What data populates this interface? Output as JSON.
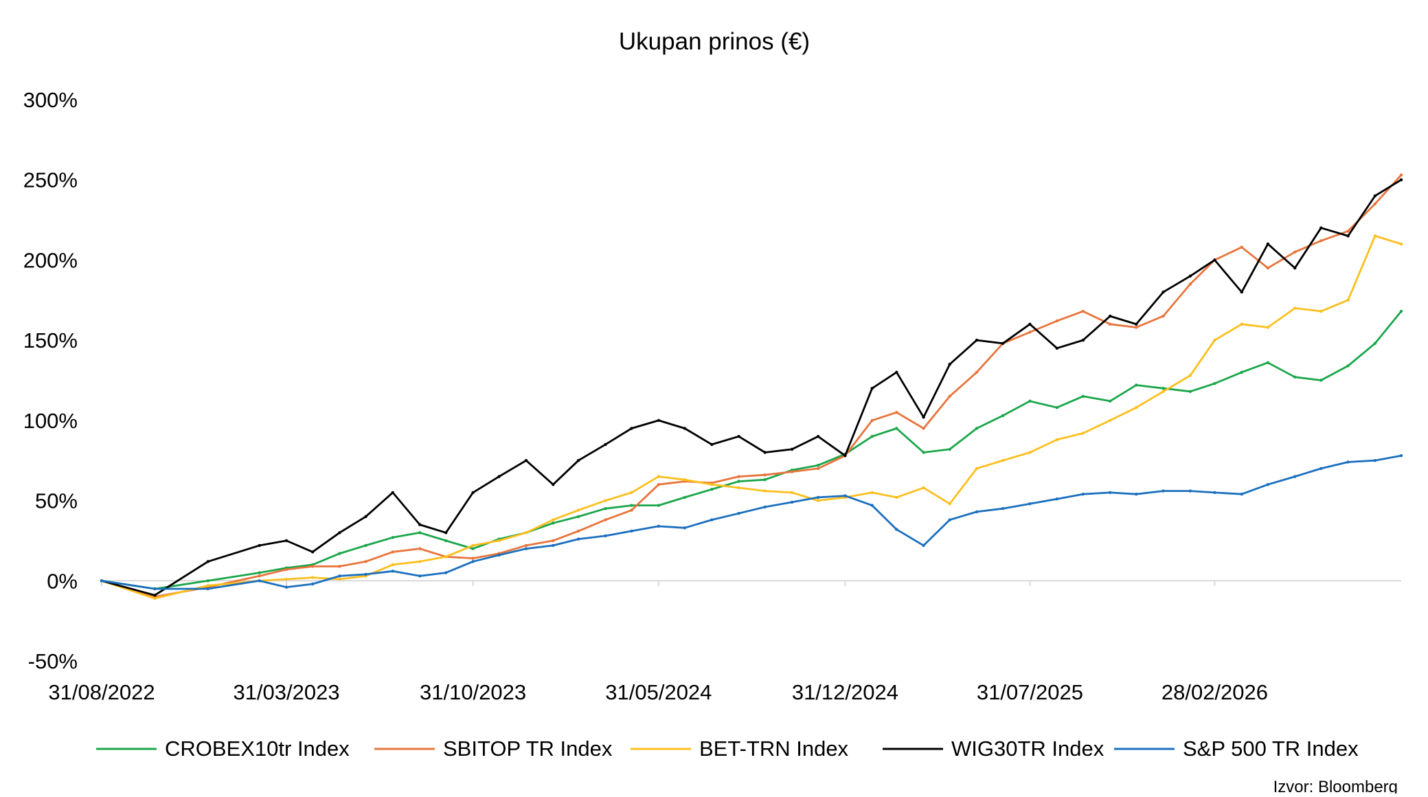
{
  "chart_data": {
    "type": "line",
    "title": "Ukupan prinos (€)",
    "xlabel": "",
    "ylabel": "",
    "x_tick_labels": [
      "31/08/2022",
      "31/03/2023",
      "31/10/2023",
      "31/05/2024",
      "31/12/2024",
      "31/07/2025",
      "28/02/2026"
    ],
    "y_tick_labels": [
      "300%",
      "250%",
      "200%",
      "150%",
      "100%",
      "50%",
      "0%",
      "-50%"
    ],
    "y_ticks": [
      300,
      250,
      200,
      150,
      100,
      50,
      0,
      -50
    ],
    "ylim": [
      -50,
      300
    ],
    "x_start": "31/08/2022",
    "x_end": "30/09/2026",
    "legend_position": "bottom",
    "grid": false,
    "source": "Izvor: Bloomberg",
    "x": [
      "31/08/2022",
      "31/10/2022",
      "31/12/2022",
      "28/02/2023",
      "31/03/2023",
      "30/04/2023",
      "31/05/2023",
      "30/06/2023",
      "31/07/2023",
      "31/08/2023",
      "30/09/2023",
      "31/10/2023",
      "30/11/2023",
      "31/12/2023",
      "31/01/2024",
      "29/02/2024",
      "31/03/2024",
      "30/04/2024",
      "31/05/2024",
      "30/06/2024",
      "31/07/2024",
      "31/08/2024",
      "30/09/2024",
      "31/10/2024",
      "30/11/2024",
      "31/12/2024",
      "31/01/2025",
      "28/02/2025",
      "31/03/2025",
      "30/04/2025",
      "31/05/2025",
      "30/06/2025",
      "31/07/2025",
      "31/08/2025",
      "30/09/2025",
      "31/10/2025",
      "30/11/2025",
      "31/12/2025",
      "31/01/2026",
      "28/02/2026",
      "31/03/2026",
      "30/04/2026",
      "31/05/2026",
      "30/06/2026",
      "31/07/2026",
      "31/08/2026",
      "30/09/2026"
    ],
    "series": [
      {
        "name": "CROBEX10tr Index",
        "color": "#1aa64a",
        "values": [
          0,
          -5,
          0,
          5,
          8,
          10,
          17,
          22,
          27,
          30,
          25,
          20,
          26,
          30,
          36,
          40,
          45,
          47,
          47,
          52,
          57,
          62,
          63,
          69,
          72,
          79,
          90,
          95,
          80,
          82,
          95,
          103,
          112,
          108,
          115,
          112,
          122,
          120,
          118,
          123,
          130,
          136,
          127,
          125,
          134,
          148,
          168
        ]
      },
      {
        "name": "SBITOP TR Index",
        "color": "#e8743b",
        "values": [
          0,
          -10,
          -4,
          3,
          7,
          9,
          9,
          12,
          18,
          20,
          15,
          14,
          17,
          22,
          25,
          31,
          38,
          44,
          60,
          62,
          61,
          65,
          66,
          68,
          70,
          78,
          100,
          105,
          95,
          115,
          130,
          148,
          155,
          162,
          168,
          160,
          158,
          165,
          185,
          200,
          208,
          195,
          205,
          212,
          218,
          235,
          253
        ]
      },
      {
        "name": "BET-TRN Index",
        "color": "#fcbf1e",
        "values": [
          0,
          -11,
          -3,
          0,
          1,
          2,
          1,
          3,
          10,
          12,
          15,
          22,
          25,
          30,
          38,
          44,
          50,
          55,
          65,
          63,
          60,
          58,
          56,
          55,
          50,
          52,
          55,
          52,
          58,
          48,
          70,
          75,
          80,
          88,
          92,
          100,
          108,
          118,
          128,
          150,
          160,
          158,
          170,
          168,
          175,
          215,
          210
        ]
      },
      {
        "name": "WIG30TR Index",
        "color": "#000000",
        "values": [
          0,
          -9,
          12,
          22,
          25,
          18,
          30,
          40,
          55,
          35,
          30,
          55,
          65,
          75,
          60,
          75,
          85,
          95,
          100,
          95,
          85,
          90,
          80,
          82,
          90,
          78,
          120,
          130,
          102,
          135,
          150,
          148,
          160,
          145,
          150,
          165,
          160,
          180,
          190,
          200,
          180,
          210,
          195,
          220,
          215,
          240,
          250
        ]
      },
      {
        "name": "S&P 500 TR Index",
        "color": "#1a6fbe",
        "values": [
          0,
          -5,
          -5,
          0,
          -4,
          -2,
          3,
          4,
          6,
          3,
          5,
          12,
          16,
          20,
          22,
          26,
          28,
          31,
          34,
          33,
          38,
          42,
          46,
          49,
          52,
          53,
          47,
          32,
          22,
          38,
          43,
          45,
          48,
          51,
          54,
          55,
          54,
          56,
          56,
          55,
          54,
          60,
          65,
          70,
          74,
          75,
          78
        ]
      }
    ]
  }
}
